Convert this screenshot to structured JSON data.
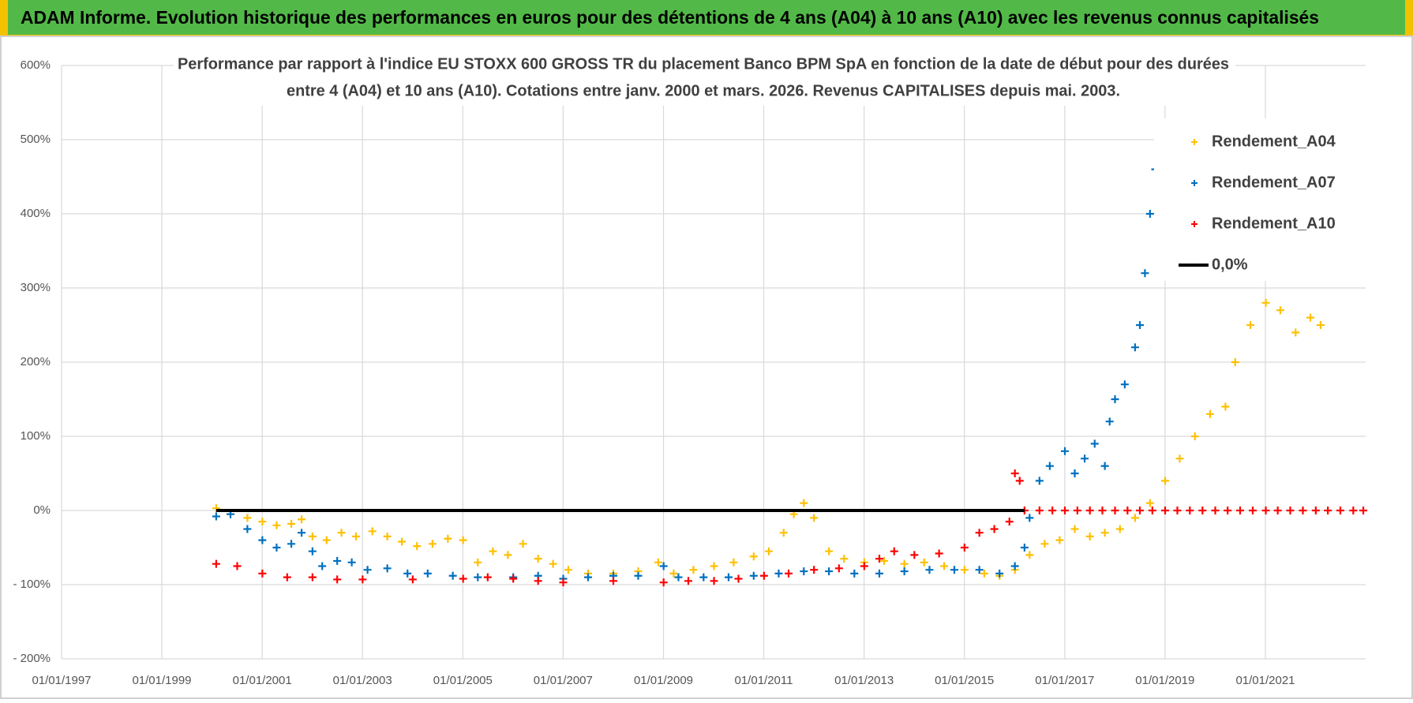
{
  "header": {
    "title": "ADAM Informe. Evolution historique des performances en euros pour des détentions de 4 ans (A04) à 10 ans (A10) avec les revenus connus capitalisés"
  },
  "chart_data": {
    "type": "scatter",
    "title": [
      "Performance par rapport à l'indice EU STOXX 600 GROSS TR  du placement Banco BPM SpA en fonction de la date de début pour des durées",
      "entre 4 (A04) et 10 ans (A10).  Cotations entre janv. 2000 et mars. 2026.  Revenus CAPITALISES  depuis mai. 2003."
    ],
    "xlim": [
      "1997-01-01",
      "2023-01-01"
    ],
    "xticks": [
      {
        "value": "1997-01-01",
        "label": "01/01/1997"
      },
      {
        "value": "1999-01-01",
        "label": "01/01/1999"
      },
      {
        "value": "2001-01-01",
        "label": "01/01/2001"
      },
      {
        "value": "2003-01-01",
        "label": "01/01/2003"
      },
      {
        "value": "2005-01-01",
        "label": "01/01/2005"
      },
      {
        "value": "2007-01-01",
        "label": "01/01/2007"
      },
      {
        "value": "2009-01-01",
        "label": "01/01/2009"
      },
      {
        "value": "2011-01-01",
        "label": "01/01/2011"
      },
      {
        "value": "2013-01-01",
        "label": "01/01/2013"
      },
      {
        "value": "2015-01-01",
        "label": "01/01/2015"
      },
      {
        "value": "2017-01-01",
        "label": "01/01/2017"
      },
      {
        "value": "2019-01-01",
        "label": "01/01/2019"
      },
      {
        "value": "2021-01-01",
        "label": "01/01/2021"
      }
    ],
    "ylim": [
      -200,
      600
    ],
    "yticks": [
      {
        "value": -200,
        "label": "- 200%"
      },
      {
        "value": -100,
        "label": "- 100%"
      },
      {
        "value": 0,
        "label": "0%"
      },
      {
        "value": 100,
        "label": "100%"
      },
      {
        "value": 200,
        "label": "200%"
      },
      {
        "value": 300,
        "label": "300%"
      },
      {
        "value": 400,
        "label": "400%"
      },
      {
        "value": 500,
        "label": "500%"
      },
      {
        "value": 600,
        "label": "600%"
      }
    ],
    "grid": true,
    "legend": "top-right",
    "series": [
      {
        "name": "Rendement_A04",
        "color": "#ffc000",
        "x": [
          "2000-02-01",
          "2000-05-15",
          "2000-09-15",
          "2001-01-02",
          "2001-04-16",
          "2001-08-01",
          "2001-10-15",
          "2002-01-02",
          "2002-04-15",
          "2002-08-01",
          "2002-11-15",
          "2003-03-14",
          "2003-07-01",
          "2003-10-15",
          "2004-02-02",
          "2004-05-25",
          "2004-09-14",
          "2005-01-03",
          "2005-04-20",
          "2005-08-08",
          "2005-11-25",
          "2006-03-15",
          "2006-07-03",
          "2006-10-20",
          "2007-02-08",
          "2007-07-02",
          "2008-01-02",
          "2008-07-01",
          "2008-11-24",
          "2009-03-16",
          "2009-08-07",
          "2010-01-04",
          "2010-05-27",
          "2010-10-20",
          "2011-02-07",
          "2011-05-26",
          "2011-08-08",
          "2011-10-20",
          "2012-01-02",
          "2012-04-20",
          "2012-08-08",
          "2013-01-02",
          "2013-05-27",
          "2013-10-21",
          "2014-03-14",
          "2014-08-07",
          "2015-01-02",
          "2015-05-26",
          "2015-09-14",
          "2016-01-04",
          "2016-04-20",
          "2016-08-08",
          "2016-11-25",
          "2017-03-15",
          "2017-07-03",
          "2017-10-20",
          "2018-02-07",
          "2018-05-28",
          "2018-09-14",
          "2019-01-02",
          "2019-04-18",
          "2019-08-07",
          "2019-11-25",
          "2020-03-16",
          "2020-05-26",
          "2020-09-14",
          "2021-01-04",
          "2021-04-20",
          "2021-08-09",
          "2021-11-25",
          "2022-02-07"
        ],
        "values": [
          3,
          -5,
          -10,
          -15,
          -20,
          -18,
          -12,
          -35,
          -40,
          -30,
          -35,
          -28,
          -35,
          -42,
          -48,
          -45,
          -38,
          -40,
          -70,
          -55,
          -60,
          -45,
          -65,
          -72,
          -80,
          -85,
          -85,
          -82,
          -70,
          -85,
          -80,
          -75,
          -70,
          -62,
          -55,
          -30,
          -5,
          10,
          -10,
          -55,
          -65,
          -70,
          -68,
          -72,
          -70,
          -75,
          -80,
          -85,
          -88,
          -80,
          -60,
          -45,
          -40,
          -25,
          -35,
          -30,
          -25,
          -10,
          10,
          40,
          70,
          100,
          130,
          140,
          200,
          250,
          280,
          270,
          240,
          260,
          250
        ]
      },
      {
        "name": "Rendement_A07",
        "color": "#0070c0",
        "x": [
          "2000-02-01",
          "2000-05-15",
          "2000-09-15",
          "2001-01-02",
          "2001-04-16",
          "2001-08-01",
          "2001-10-15",
          "2002-01-02",
          "2002-03-14",
          "2002-07-01",
          "2002-10-15",
          "2003-02-07",
          "2003-07-01",
          "2003-11-25",
          "2004-04-20",
          "2004-10-20",
          "2005-04-20",
          "2006-01-03",
          "2006-07-03",
          "2007-01-02",
          "2007-07-02",
          "2008-01-02",
          "2008-07-01",
          "2009-01-02",
          "2009-04-20",
          "2009-10-20",
          "2010-04-20",
          "2010-10-20",
          "2011-04-20",
          "2011-10-20",
          "2012-04-20",
          "2012-10-22",
          "2013-04-22",
          "2013-10-21",
          "2014-04-22",
          "2014-10-20",
          "2015-04-20",
          "2015-09-14",
          "2016-01-04",
          "2016-03-14",
          "2016-04-20",
          "2016-07-01",
          "2016-09-14",
          "2017-01-02",
          "2017-03-15",
          "2017-05-26",
          "2017-08-07",
          "2017-10-20",
          "2017-11-24",
          "2018-01-02",
          "2018-03-14",
          "2018-05-28",
          "2018-07-02",
          "2018-08-08",
          "2018-09-14",
          "2018-10-22"
        ],
        "values": [
          -8,
          -5,
          -25,
          -40,
          -50,
          -45,
          -30,
          -55,
          -75,
          -68,
          -70,
          -80,
          -78,
          -85,
          -85,
          -88,
          -90,
          -90,
          -88,
          -92,
          -90,
          -88,
          -88,
          -75,
          -90,
          -90,
          -90,
          -88,
          -85,
          -82,
          -82,
          -85,
          -85,
          -82,
          -80,
          -80,
          -80,
          -85,
          -75,
          -50,
          -10,
          40,
          60,
          80,
          50,
          70,
          90,
          60,
          120,
          150,
          170,
          220,
          250,
          320,
          400,
          460
        ]
      },
      {
        "name": "Rendement_A10",
        "color": "#ff0000",
        "x": [
          "2000-02-01",
          "2000-07-03",
          "2001-01-02",
          "2001-07-02",
          "2002-01-02",
          "2002-07-01",
          "2003-01-02",
          "2004-01-02",
          "2005-01-03",
          "2005-07-01",
          "2006-01-03",
          "2006-07-03",
          "2007-01-02",
          "2008-01-02",
          "2009-01-02",
          "2009-07-01",
          "2010-01-04",
          "2010-07-01",
          "2011-01-03",
          "2011-07-01",
          "2012-01-02",
          "2012-07-02",
          "2013-01-02",
          "2013-04-22",
          "2013-08-08",
          "2014-01-02",
          "2014-07-01",
          "2015-01-02",
          "2015-04-20",
          "2015-08-07",
          "2015-11-25",
          "2016-01-04",
          "2016-02-08",
          "2016-03-14",
          "2016-07-01",
          "2016-10-03",
          "2017-01-02",
          "2017-04-03",
          "2017-07-03",
          "2017-10-02",
          "2018-01-02",
          "2018-04-03",
          "2018-07-02",
          "2018-10-01",
          "2019-01-02",
          "2019-04-01",
          "2019-07-01",
          "2019-10-01",
          "2020-01-02",
          "2020-04-01",
          "2020-07-01",
          "2020-10-01",
          "2021-01-04",
          "2021-04-01",
          "2021-07-01",
          "2021-10-01",
          "2022-01-03",
          "2022-04-01",
          "2022-07-01",
          "2022-10-03",
          "2022-12-15"
        ],
        "values": [
          -72,
          -75,
          -85,
          -90,
          -90,
          -93,
          -93,
          -93,
          -92,
          -90,
          -92,
          -95,
          -97,
          -95,
          -97,
          -95,
          -95,
          -92,
          -88,
          -85,
          -80,
          -78,
          -75,
          -65,
          -55,
          -60,
          -58,
          -50,
          -30,
          -25,
          -15,
          50,
          40,
          0,
          0,
          0,
          0,
          0,
          0,
          0,
          0,
          0,
          0,
          0,
          0,
          0,
          0,
          0,
          0,
          0,
          0,
          0,
          0,
          0,
          0,
          0,
          0,
          0,
          0,
          0,
          0
        ]
      },
      {
        "name": "0,0%",
        "color": "#000000",
        "type": "line",
        "x": [
          "2000-02-01",
          "2016-03-14"
        ],
        "values": [
          0,
          0
        ]
      }
    ]
  }
}
